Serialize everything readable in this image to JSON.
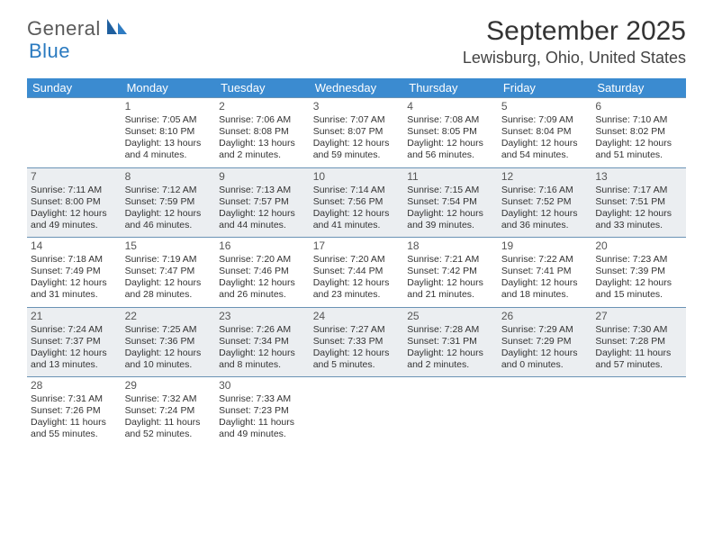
{
  "logo": {
    "text1": "General",
    "text2": "Blue"
  },
  "title": "September 2025",
  "location": "Lewisburg, Ohio, United States",
  "colors": {
    "header_bg": "#3b8bd0",
    "header_text": "#ffffff",
    "row_border": "#6a93b5",
    "shaded_row": "#ebeef1",
    "logo_gray": "#5a5a5a",
    "logo_blue": "#2a7ac0",
    "text": "#333333"
  },
  "day_headers": [
    "Sunday",
    "Monday",
    "Tuesday",
    "Wednesday",
    "Thursday",
    "Friday",
    "Saturday"
  ],
  "weeks": [
    {
      "shaded": false,
      "days": [
        null,
        {
          "n": "1",
          "sr": "Sunrise: 7:05 AM",
          "ss": "Sunset: 8:10 PM",
          "dl1": "Daylight: 13 hours",
          "dl2": "and 4 minutes."
        },
        {
          "n": "2",
          "sr": "Sunrise: 7:06 AM",
          "ss": "Sunset: 8:08 PM",
          "dl1": "Daylight: 13 hours",
          "dl2": "and 2 minutes."
        },
        {
          "n": "3",
          "sr": "Sunrise: 7:07 AM",
          "ss": "Sunset: 8:07 PM",
          "dl1": "Daylight: 12 hours",
          "dl2": "and 59 minutes."
        },
        {
          "n": "4",
          "sr": "Sunrise: 7:08 AM",
          "ss": "Sunset: 8:05 PM",
          "dl1": "Daylight: 12 hours",
          "dl2": "and 56 minutes."
        },
        {
          "n": "5",
          "sr": "Sunrise: 7:09 AM",
          "ss": "Sunset: 8:04 PM",
          "dl1": "Daylight: 12 hours",
          "dl2": "and 54 minutes."
        },
        {
          "n": "6",
          "sr": "Sunrise: 7:10 AM",
          "ss": "Sunset: 8:02 PM",
          "dl1": "Daylight: 12 hours",
          "dl2": "and 51 minutes."
        }
      ]
    },
    {
      "shaded": true,
      "days": [
        {
          "n": "7",
          "sr": "Sunrise: 7:11 AM",
          "ss": "Sunset: 8:00 PM",
          "dl1": "Daylight: 12 hours",
          "dl2": "and 49 minutes."
        },
        {
          "n": "8",
          "sr": "Sunrise: 7:12 AM",
          "ss": "Sunset: 7:59 PM",
          "dl1": "Daylight: 12 hours",
          "dl2": "and 46 minutes."
        },
        {
          "n": "9",
          "sr": "Sunrise: 7:13 AM",
          "ss": "Sunset: 7:57 PM",
          "dl1": "Daylight: 12 hours",
          "dl2": "and 44 minutes."
        },
        {
          "n": "10",
          "sr": "Sunrise: 7:14 AM",
          "ss": "Sunset: 7:56 PM",
          "dl1": "Daylight: 12 hours",
          "dl2": "and 41 minutes."
        },
        {
          "n": "11",
          "sr": "Sunrise: 7:15 AM",
          "ss": "Sunset: 7:54 PM",
          "dl1": "Daylight: 12 hours",
          "dl2": "and 39 minutes."
        },
        {
          "n": "12",
          "sr": "Sunrise: 7:16 AM",
          "ss": "Sunset: 7:52 PM",
          "dl1": "Daylight: 12 hours",
          "dl2": "and 36 minutes."
        },
        {
          "n": "13",
          "sr": "Sunrise: 7:17 AM",
          "ss": "Sunset: 7:51 PM",
          "dl1": "Daylight: 12 hours",
          "dl2": "and 33 minutes."
        }
      ]
    },
    {
      "shaded": false,
      "days": [
        {
          "n": "14",
          "sr": "Sunrise: 7:18 AM",
          "ss": "Sunset: 7:49 PM",
          "dl1": "Daylight: 12 hours",
          "dl2": "and 31 minutes."
        },
        {
          "n": "15",
          "sr": "Sunrise: 7:19 AM",
          "ss": "Sunset: 7:47 PM",
          "dl1": "Daylight: 12 hours",
          "dl2": "and 28 minutes."
        },
        {
          "n": "16",
          "sr": "Sunrise: 7:20 AM",
          "ss": "Sunset: 7:46 PM",
          "dl1": "Daylight: 12 hours",
          "dl2": "and 26 minutes."
        },
        {
          "n": "17",
          "sr": "Sunrise: 7:20 AM",
          "ss": "Sunset: 7:44 PM",
          "dl1": "Daylight: 12 hours",
          "dl2": "and 23 minutes."
        },
        {
          "n": "18",
          "sr": "Sunrise: 7:21 AM",
          "ss": "Sunset: 7:42 PM",
          "dl1": "Daylight: 12 hours",
          "dl2": "and 21 minutes."
        },
        {
          "n": "19",
          "sr": "Sunrise: 7:22 AM",
          "ss": "Sunset: 7:41 PM",
          "dl1": "Daylight: 12 hours",
          "dl2": "and 18 minutes."
        },
        {
          "n": "20",
          "sr": "Sunrise: 7:23 AM",
          "ss": "Sunset: 7:39 PM",
          "dl1": "Daylight: 12 hours",
          "dl2": "and 15 minutes."
        }
      ]
    },
    {
      "shaded": true,
      "days": [
        {
          "n": "21",
          "sr": "Sunrise: 7:24 AM",
          "ss": "Sunset: 7:37 PM",
          "dl1": "Daylight: 12 hours",
          "dl2": "and 13 minutes."
        },
        {
          "n": "22",
          "sr": "Sunrise: 7:25 AM",
          "ss": "Sunset: 7:36 PM",
          "dl1": "Daylight: 12 hours",
          "dl2": "and 10 minutes."
        },
        {
          "n": "23",
          "sr": "Sunrise: 7:26 AM",
          "ss": "Sunset: 7:34 PM",
          "dl1": "Daylight: 12 hours",
          "dl2": "and 8 minutes."
        },
        {
          "n": "24",
          "sr": "Sunrise: 7:27 AM",
          "ss": "Sunset: 7:33 PM",
          "dl1": "Daylight: 12 hours",
          "dl2": "and 5 minutes."
        },
        {
          "n": "25",
          "sr": "Sunrise: 7:28 AM",
          "ss": "Sunset: 7:31 PM",
          "dl1": "Daylight: 12 hours",
          "dl2": "and 2 minutes."
        },
        {
          "n": "26",
          "sr": "Sunrise: 7:29 AM",
          "ss": "Sunset: 7:29 PM",
          "dl1": "Daylight: 12 hours",
          "dl2": "and 0 minutes."
        },
        {
          "n": "27",
          "sr": "Sunrise: 7:30 AM",
          "ss": "Sunset: 7:28 PM",
          "dl1": "Daylight: 11 hours",
          "dl2": "and 57 minutes."
        }
      ]
    },
    {
      "shaded": false,
      "days": [
        {
          "n": "28",
          "sr": "Sunrise: 7:31 AM",
          "ss": "Sunset: 7:26 PM",
          "dl1": "Daylight: 11 hours",
          "dl2": "and 55 minutes."
        },
        {
          "n": "29",
          "sr": "Sunrise: 7:32 AM",
          "ss": "Sunset: 7:24 PM",
          "dl1": "Daylight: 11 hours",
          "dl2": "and 52 minutes."
        },
        {
          "n": "30",
          "sr": "Sunrise: 7:33 AM",
          "ss": "Sunset: 7:23 PM",
          "dl1": "Daylight: 11 hours",
          "dl2": "and 49 minutes."
        },
        null,
        null,
        null,
        null
      ]
    }
  ]
}
